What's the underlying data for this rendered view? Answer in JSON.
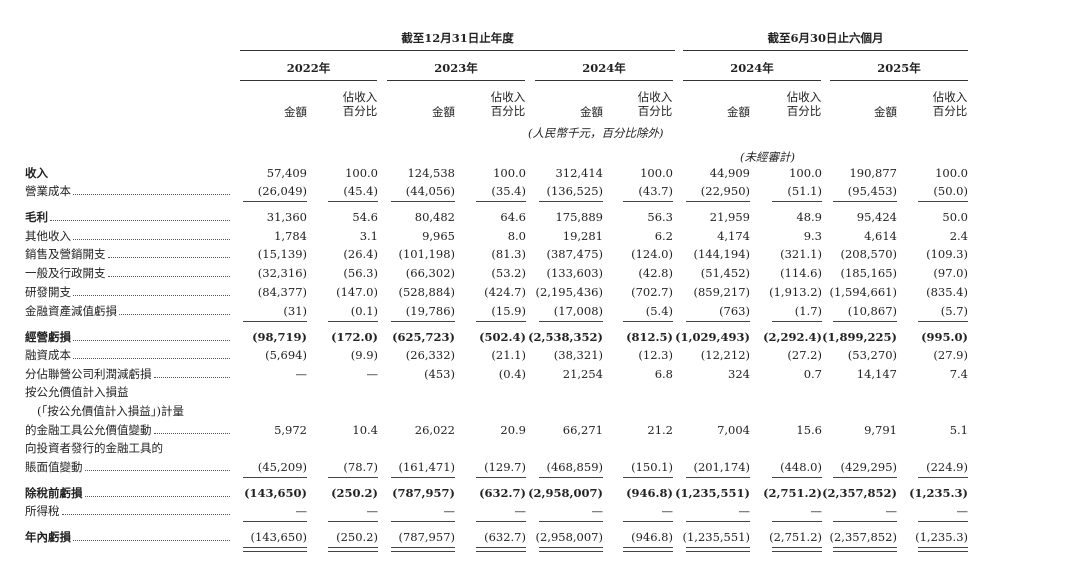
{
  "header": {
    "groups": [
      "截至12月31日止年度",
      "截至6月30日止六個月"
    ],
    "years": [
      "2022年",
      "2023年",
      "2024年",
      "2024年",
      "2025年"
    ],
    "subheaders": [
      {
        "amount": "金額",
        "pct": "佔收入百分比"
      },
      {
        "amount": "金額",
        "pct": "佔收入百分比"
      },
      {
        "amount": "金額",
        "pct": "佔收入百分比"
      },
      {
        "amount": "金額",
        "pct": "佔收入百分比"
      },
      {
        "amount": "金額",
        "pct": "佔收入百分比"
      }
    ],
    "unit_note": "(人民幣千元，百分比除外)",
    "unaudited_note": "(未經審計)"
  },
  "table": {
    "rows": [
      {
        "label": [
          "收入"
        ],
        "values": [
          "57,409",
          "100.0",
          "124,538",
          "100.0",
          "312,414",
          "100.0",
          "44,909",
          "100.0",
          "190,877",
          "100.0"
        ]
      },
      {
        "label": [
          "營業成本"
        ],
        "values": [
          "(26,049)",
          "(45.4)",
          "(44,056)",
          "(35.4)",
          "(136,525)",
          "(43.7)",
          "(22,950)",
          "(51.1)",
          "(95,453)",
          "(50.0)"
        ]
      },
      {
        "label": [
          "毛利"
        ],
        "values": [
          "31,360",
          "54.6",
          "80,482",
          "64.6",
          "175,889",
          "56.3",
          "21,959",
          "48.9",
          "95,424",
          "50.0"
        ]
      },
      {
        "label": [
          "其他收入"
        ],
        "values": [
          "1,784",
          "3.1",
          "9,965",
          "8.0",
          "19,281",
          "6.2",
          "4,174",
          "9.3",
          "4,614",
          "2.4"
        ]
      },
      {
        "label": [
          "銷售及營銷開支"
        ],
        "values": [
          "(15,139)",
          "(26.4)",
          "(101,198)",
          "(81.3)",
          "(387,475)",
          "(124.0)",
          "(144,194)",
          "(321.1)",
          "(208,570)",
          "(109.3)"
        ]
      },
      {
        "label": [
          "一般及行政開支"
        ],
        "values": [
          "(32,316)",
          "(56.3)",
          "(66,302)",
          "(53.2)",
          "(133,603)",
          "(42.8)",
          "(51,452)",
          "(114.6)",
          "(185,165)",
          "(97.0)"
        ]
      },
      {
        "label": [
          "研發開支"
        ],
        "values": [
          "(84,377)",
          "(147.0)",
          "(528,884)",
          "(424.7)",
          "(2,195,436)",
          "(702.7)",
          "(859,217)",
          "(1,913.2)",
          "(1,594,661)",
          "(835.4)"
        ]
      },
      {
        "label": [
          "金融資產減值虧損"
        ],
        "values": [
          "(31)",
          "(0.1)",
          "(19,786)",
          "(15.9)",
          "(17,008)",
          "(5.4)",
          "(763)",
          "(1.7)",
          "(10,867)",
          "(5.7)"
        ]
      },
      {
        "label": [
          "經營虧損"
        ],
        "values": [
          "(98,719)",
          "(172.0)",
          "(625,723)",
          "(502.4)",
          "(2,538,352)",
          "(812.5)",
          "(1,029,493)",
          "(2,292.4)",
          "(1,899,225)",
          "(995.0)"
        ]
      },
      {
        "label": [
          "融資成本"
        ],
        "values": [
          "(5,694)",
          "(9.9)",
          "(26,332)",
          "(21.1)",
          "(38,321)",
          "(12.3)",
          "(12,212)",
          "(27.2)",
          "(53,270)",
          "(27.9)"
        ]
      },
      {
        "label": [
          "分佔聯營公司利潤減虧損"
        ],
        "values": [
          "—",
          "—",
          "(453)",
          "(0.4)",
          "21,254",
          "6.8",
          "324",
          "0.7",
          "14,147",
          "7.4"
        ]
      },
      {
        "label": [
          "按公允價值計入損益",
          "(「按公允價值計入損益」)計量",
          "的金融工具公允價值變動"
        ],
        "values": [
          "5,972",
          "10.4",
          "26,022",
          "20.9",
          "66,271",
          "21.2",
          "7,004",
          "15.6",
          "9,791",
          "5.1"
        ]
      },
      {
        "label": [
          "向投資者發行的金融工具的",
          "賬面值變動"
        ],
        "values": [
          "(45,209)",
          "(78.7)",
          "(161,471)",
          "(129.7)",
          "(468,859)",
          "(150.1)",
          "(201,174)",
          "(448.0)",
          "(429,295)",
          "(224.9)"
        ]
      },
      {
        "label": [
          "除稅前虧損"
        ],
        "values": [
          "(143,650)",
          "(250.2)",
          "(787,957)",
          "(632.7)",
          "(2,958,007)",
          "(946.8)",
          "(1,235,551)",
          "(2,751.2)",
          "(2,357,852)",
          "(1,235.3)"
        ]
      },
      {
        "label": [
          "所得稅"
        ],
        "values": [
          "—",
          "—",
          "—",
          "—",
          "—",
          "—",
          "—",
          "—",
          "—",
          "—"
        ]
      },
      {
        "label": [
          "年內虧損"
        ],
        "values": [
          "(143,650)",
          "(250.2)",
          "(787,957)",
          "(632.7)",
          "(2,958,007)",
          "(946.8)",
          "(1,235,551)",
          "(2,751.2)",
          "(2,357,852)",
          "(1,235.3)"
        ]
      }
    ]
  }
}
